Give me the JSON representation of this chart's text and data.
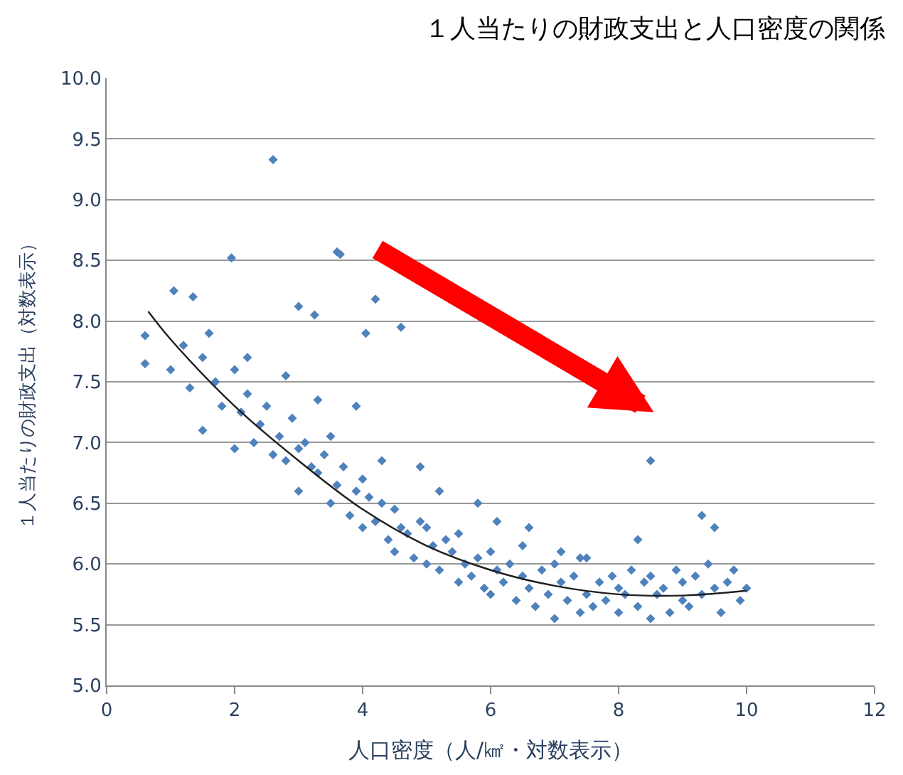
{
  "chart_data": {
    "type": "scatter",
    "title": "１人当たりの財政支出と人口密度の関係",
    "xlabel": "人口密度（人/㎢・対数表示）",
    "ylabel": "１人当たりの財政支出（対数表示）",
    "xlim": [
      0,
      12
    ],
    "xticks": [
      0,
      2,
      4,
      6,
      8,
      10,
      12
    ],
    "ylim": [
      5.0,
      10.0
    ],
    "yticks": [
      {
        "value": 5.0,
        "label": "5.0"
      },
      {
        "value": 5.5,
        "label": "5.5"
      },
      {
        "value": 6.0,
        "label": "6.0"
      },
      {
        "value": 6.5,
        "label": "6.5"
      },
      {
        "value": 7.0,
        "label": "7.0"
      },
      {
        "value": 7.5,
        "label": "7.5"
      },
      {
        "value": 8.0,
        "label": "8.0"
      },
      {
        "value": 8.5,
        "label": "8.5"
      },
      {
        "value": 9.0,
        "label": "9.0"
      },
      {
        "value": 9.5,
        "label": "9.5"
      },
      {
        "value": 10.0,
        "label": "10.0"
      }
    ],
    "grid": "y",
    "marker": "diamond",
    "series": [
      {
        "color": "#4f81bd",
        "x": [
          0.6,
          0.6,
          1.05,
          1.35,
          1.95,
          2.6,
          3.0,
          3.25,
          3.6,
          3.65,
          4.2,
          4.05,
          4.6,
          1.0,
          1.2,
          1.3,
          1.5,
          1.5,
          1.7,
          1.8,
          2.0,
          2.0,
          2.1,
          2.2,
          2.3,
          2.4,
          2.5,
          2.6,
          2.7,
          2.8,
          2.9,
          3.0,
          3.0,
          3.1,
          3.2,
          3.3,
          3.4,
          3.5,
          3.5,
          3.6,
          3.7,
          3.8,
          3.9,
          4.0,
          4.0,
          4.1,
          4.2,
          4.3,
          4.4,
          4.5,
          4.5,
          4.6,
          4.7,
          4.8,
          4.9,
          5.0,
          5.0,
          5.1,
          5.2,
          5.3,
          5.4,
          5.5,
          5.5,
          5.6,
          5.7,
          5.8,
          5.9,
          6.0,
          6.0,
          6.1,
          6.2,
          6.3,
          6.4,
          6.5,
          6.5,
          6.6,
          6.7,
          6.8,
          6.9,
          7.0,
          7.0,
          7.1,
          7.2,
          7.3,
          7.4,
          7.5,
          7.5,
          7.6,
          7.7,
          7.8,
          7.9,
          8.0,
          8.0,
          8.1,
          8.2,
          8.3,
          8.4,
          8.5,
          8.5,
          8.6,
          8.7,
          8.8,
          8.9,
          9.0,
          9.0,
          9.1,
          9.2,
          9.3,
          9.4,
          9.5,
          9.6,
          9.7,
          9.8,
          9.9,
          10.0,
          2.2,
          3.3,
          4.3,
          5.2,
          6.1,
          7.1,
          8.3,
          9.5,
          1.6,
          2.8,
          3.9,
          4.9,
          5.8,
          6.6,
          7.4,
          9.3
        ],
        "values": [
          7.88,
          7.65,
          8.25,
          8.2,
          8.52,
          9.33,
          8.12,
          8.05,
          8.57,
          8.55,
          8.18,
          7.9,
          7.95,
          7.6,
          7.8,
          7.45,
          7.7,
          7.1,
          7.5,
          7.3,
          7.6,
          6.95,
          7.25,
          7.4,
          7.0,
          7.15,
          7.3,
          6.9,
          7.05,
          6.85,
          7.2,
          6.95,
          6.6,
          7.0,
          6.8,
          6.75,
          6.9,
          6.5,
          7.05,
          6.65,
          6.8,
          6.4,
          6.6,
          6.3,
          6.7,
          6.55,
          6.35,
          6.5,
          6.2,
          6.45,
          6.1,
          6.3,
          6.25,
          6.05,
          6.35,
          6.0,
          6.3,
          6.15,
          5.95,
          6.2,
          6.1,
          5.85,
          6.25,
          6.0,
          5.9,
          6.05,
          5.8,
          5.75,
          6.1,
          5.95,
          5.85,
          6.0,
          5.7,
          5.9,
          6.15,
          5.8,
          5.65,
          5.95,
          5.75,
          5.55,
          6.0,
          5.85,
          5.7,
          5.9,
          5.6,
          5.75,
          6.05,
          5.65,
          5.85,
          5.7,
          5.9,
          5.6,
          5.8,
          5.75,
          5.95,
          5.65,
          5.85,
          5.55,
          5.9,
          5.75,
          5.8,
          5.6,
          5.95,
          5.7,
          5.85,
          5.65,
          5.9,
          5.75,
          6.0,
          5.8,
          5.6,
          5.85,
          5.95,
          5.7,
          5.8,
          7.7,
          7.35,
          6.85,
          6.6,
          6.35,
          6.1,
          6.2,
          6.3,
          7.9,
          7.55,
          7.3,
          6.8,
          6.5,
          6.3,
          6.05,
          6.4
        ]
      },
      {
        "color": "#4f81bd",
        "x": [
          8.5
        ],
        "values": [
          6.85
        ]
      },
      {
        "type": "line",
        "color": "#1f1f1f",
        "marker": "none",
        "x": [
          0.65,
          1,
          2,
          3,
          4,
          5,
          6,
          7,
          8,
          9,
          10
        ],
        "values": [
          8.08,
          7.85,
          7.3,
          6.85,
          6.45,
          6.15,
          5.95,
          5.82,
          5.75,
          5.74,
          5.78
        ]
      }
    ]
  }
}
